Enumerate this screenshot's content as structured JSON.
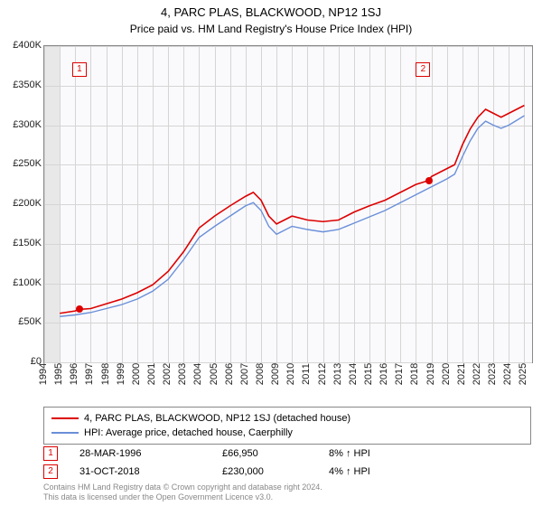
{
  "title": "4, PARC PLAS, BLACKWOOD, NP12 1SJ",
  "subtitle": "Price paid vs. HM Land Registry's House Price Index (HPI)",
  "chart": {
    "type": "line",
    "background_color": "#fafafd",
    "grid_color": "#d5d5d5",
    "border_color": "#888888",
    "x": {
      "min": 1994,
      "max": 2025.5,
      "ticks": [
        1994,
        1995,
        1996,
        1997,
        1998,
        1999,
        2000,
        2001,
        2002,
        2003,
        2004,
        2005,
        2006,
        2007,
        2008,
        2009,
        2010,
        2011,
        2012,
        2013,
        2014,
        2015,
        2016,
        2017,
        2018,
        2019,
        2020,
        2021,
        2022,
        2023,
        2024,
        2025
      ]
    },
    "y": {
      "min": 0,
      "max": 400000,
      "ticks": [
        0,
        50000,
        100000,
        150000,
        200000,
        250000,
        300000,
        350000,
        400000
      ],
      "tick_labels": [
        "£0",
        "£50K",
        "£100K",
        "£150K",
        "£200K",
        "£250K",
        "£300K",
        "£350K",
        "£400K"
      ]
    },
    "plot_bg_start_x": 1995,
    "series": [
      {
        "name": "4, PARC PLAS, BLACKWOOD, NP12 1SJ (detached house)",
        "color": "#dd0000",
        "width": 1.6,
        "data": [
          [
            1995,
            62000
          ],
          [
            1996,
            65000
          ],
          [
            1996.25,
            66950
          ],
          [
            1997,
            68000
          ],
          [
            1998,
            74000
          ],
          [
            1999,
            80000
          ],
          [
            2000,
            88000
          ],
          [
            2001,
            98000
          ],
          [
            2002,
            115000
          ],
          [
            2003,
            140000
          ],
          [
            2004,
            170000
          ],
          [
            2005,
            185000
          ],
          [
            2006,
            198000
          ],
          [
            2007,
            210000
          ],
          [
            2007.5,
            215000
          ],
          [
            2008,
            205000
          ],
          [
            2008.5,
            185000
          ],
          [
            2009,
            175000
          ],
          [
            2009.5,
            180000
          ],
          [
            2010,
            185000
          ],
          [
            2011,
            180000
          ],
          [
            2012,
            178000
          ],
          [
            2013,
            180000
          ],
          [
            2014,
            190000
          ],
          [
            2015,
            198000
          ],
          [
            2016,
            205000
          ],
          [
            2017,
            215000
          ],
          [
            2018,
            225000
          ],
          [
            2018.83,
            230000
          ],
          [
            2019,
            235000
          ],
          [
            2020,
            245000
          ],
          [
            2020.5,
            250000
          ],
          [
            2021,
            275000
          ],
          [
            2021.5,
            295000
          ],
          [
            2022,
            310000
          ],
          [
            2022.5,
            320000
          ],
          [
            2023,
            315000
          ],
          [
            2023.5,
            310000
          ],
          [
            2024,
            315000
          ],
          [
            2024.5,
            320000
          ],
          [
            2025,
            325000
          ]
        ]
      },
      {
        "name": "HPI: Average price, detached house, Caerphilly",
        "color": "#6a8fd8",
        "width": 1.4,
        "data": [
          [
            1995,
            58000
          ],
          [
            1996,
            60000
          ],
          [
            1997,
            63000
          ],
          [
            1998,
            68000
          ],
          [
            1999,
            73000
          ],
          [
            2000,
            80000
          ],
          [
            2001,
            90000
          ],
          [
            2002,
            105000
          ],
          [
            2003,
            130000
          ],
          [
            2004,
            158000
          ],
          [
            2005,
            172000
          ],
          [
            2006,
            185000
          ],
          [
            2007,
            198000
          ],
          [
            2007.5,
            202000
          ],
          [
            2008,
            192000
          ],
          [
            2008.5,
            172000
          ],
          [
            2009,
            162000
          ],
          [
            2009.5,
            167000
          ],
          [
            2010,
            172000
          ],
          [
            2011,
            168000
          ],
          [
            2012,
            165000
          ],
          [
            2013,
            168000
          ],
          [
            2014,
            176000
          ],
          [
            2015,
            184000
          ],
          [
            2016,
            192000
          ],
          [
            2017,
            202000
          ],
          [
            2018,
            212000
          ],
          [
            2019,
            222000
          ],
          [
            2020,
            232000
          ],
          [
            2020.5,
            238000
          ],
          [
            2021,
            260000
          ],
          [
            2021.5,
            280000
          ],
          [
            2022,
            296000
          ],
          [
            2022.5,
            305000
          ],
          [
            2023,
            300000
          ],
          [
            2023.5,
            296000
          ],
          [
            2024,
            300000
          ],
          [
            2024.5,
            306000
          ],
          [
            2025,
            312000
          ]
        ]
      }
    ],
    "sale_points": [
      {
        "x": 1996.25,
        "y": 66950
      },
      {
        "x": 2018.83,
        "y": 230000
      }
    ],
    "markers": [
      {
        "label": "1",
        "chart_x": 1995.8,
        "chart_at_top": true
      },
      {
        "label": "2",
        "chart_x": 2018.0,
        "chart_at_top": true
      }
    ]
  },
  "legend": {
    "items": [
      {
        "color": "#dd0000",
        "label": "4, PARC PLAS, BLACKWOOD, NP12 1SJ (detached house)"
      },
      {
        "color": "#6a8fd8",
        "label": "HPI: Average price, detached house, Caerphilly"
      }
    ]
  },
  "sales": [
    {
      "num": "1",
      "date": "28-MAR-1996",
      "price": "£66,950",
      "diff": "8% ↑ HPI"
    },
    {
      "num": "2",
      "date": "31-OCT-2018",
      "price": "£230,000",
      "diff": "4% ↑ HPI"
    }
  ],
  "footer_line1": "Contains HM Land Registry data © Crown copyright and database right 2024.",
  "footer_line2": "This data is licensed under the Open Government Licence v3.0."
}
